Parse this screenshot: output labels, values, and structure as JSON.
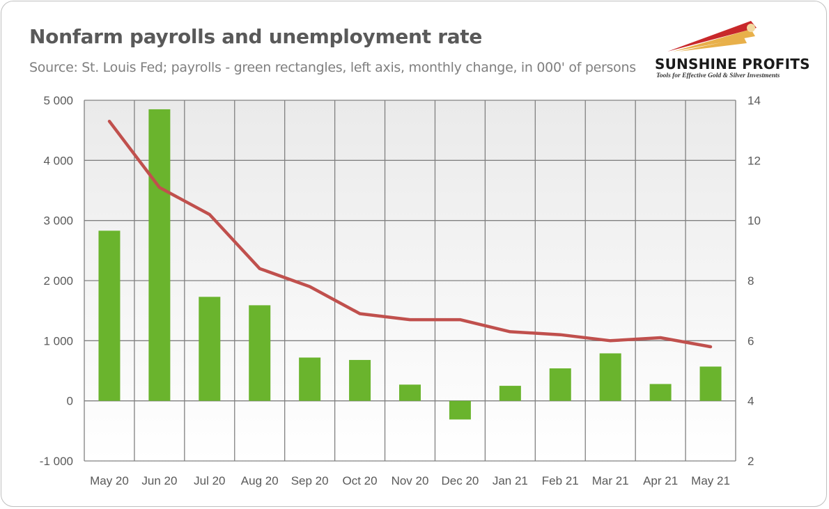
{
  "header": {
    "title": "Nonfarm payrolls and unemployment rate",
    "subtitle": "Source: St. Louis Fed; payrolls - green rectangles, left axis, monthly change, in 000' of persons"
  },
  "logo": {
    "name": "SUNSHINE PROFITS",
    "tagline": "Tools for Effective Gold & Silver Investments"
  },
  "colors": {
    "bar": "#6ab42d",
    "line": "#c0504d",
    "grid": "#808080",
    "logo_red": "#c8282a",
    "logo_gold": "#e8b04a"
  },
  "chart_data": {
    "type": "bar",
    "categories": [
      "May 20",
      "Jun 20",
      "Jul 20",
      "Aug 20",
      "Sep 20",
      "Oct 20",
      "Nov 20",
      "Dec 20",
      "Jan 21",
      "Feb 21",
      "Mar 21",
      "Apr 21",
      "May 21"
    ],
    "series": [
      {
        "type": "bar",
        "axis": "left",
        "values": [
          2830,
          4850,
          1730,
          1590,
          720,
          680,
          270,
          -310,
          250,
          540,
          790,
          280,
          570
        ]
      },
      {
        "type": "line",
        "axis": "right",
        "values": [
          13.3,
          11.1,
          10.2,
          8.4,
          7.8,
          6.9,
          6.7,
          6.7,
          6.3,
          6.2,
          6.0,
          6.1,
          5.8
        ]
      }
    ],
    "ylim_left": [
      -1000,
      5000
    ],
    "yticks_left": [
      "5 000",
      "4 000",
      "3 000",
      "2 000",
      "1 000",
      "0",
      "-1 000"
    ],
    "ylim_right": [
      2,
      14
    ],
    "yticks_right": [
      "14",
      "12",
      "10",
      "8",
      "6",
      "4",
      "2"
    ],
    "grid": true,
    "legend": "none"
  }
}
